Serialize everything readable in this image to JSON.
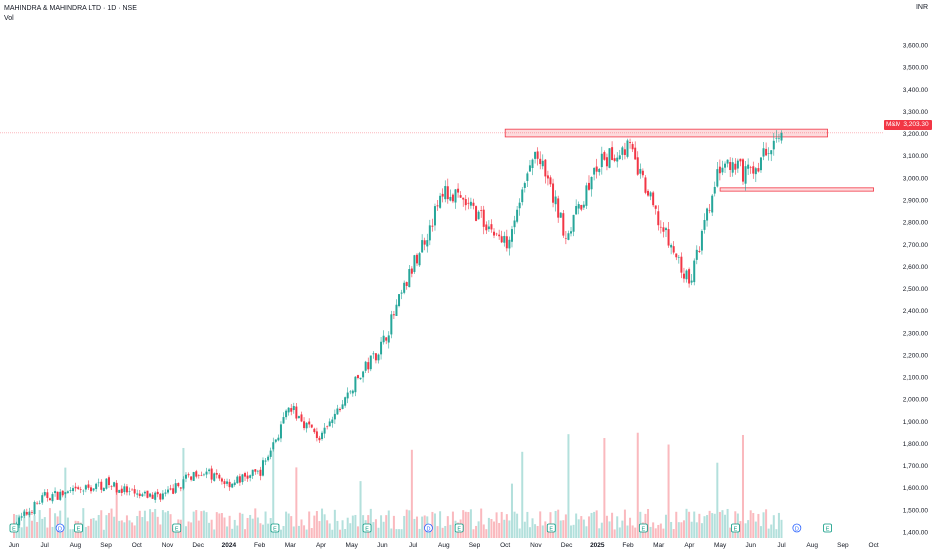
{
  "header": {
    "title": "MAHINDRA & MAHINDRA LTD · 1D · NSE",
    "volume_label": "Vol",
    "currency": "INR"
  },
  "last_price": {
    "symbol": "M&M",
    "value": "3,203.30"
  },
  "colors": {
    "up": "#26a69a",
    "down": "#f23645",
    "zone": "#f23645"
  },
  "chart_data": {
    "type": "candlestick",
    "ylim": [
      1400,
      3650
    ],
    "yticks": [
      1400,
      1500,
      1600,
      1700,
      1800,
      1900,
      2000,
      2100,
      2200,
      2300,
      2400,
      2500,
      2600,
      2700,
      2800,
      2900,
      3000,
      3100,
      3200,
      3300,
      3400,
      3500,
      3600
    ],
    "ytick_labels": [
      "1,400.00",
      "1,500.00",
      "1,600.00",
      "1,700.00",
      "1,800.00",
      "1,900.00",
      "2,000.00",
      "2,100.00",
      "2,200.00",
      "2,300.00",
      "2,400.00",
      "2,500.00",
      "2,600.00",
      "2,700.00",
      "2,800.00",
      "2,900.00",
      "3,000.00",
      "3,100.00",
      "3,200.00",
      "3,300.00",
      "3,400.00",
      "3,500.00",
      "3,600.00"
    ],
    "months": [
      "Jun",
      "Jul",
      "Aug",
      "Sep",
      "Oct",
      "Nov",
      "Dec",
      "2024",
      "Feb",
      "Mar",
      "Apr",
      "May",
      "Jun",
      "Jul",
      "Aug",
      "Sep",
      "Oct",
      "Nov",
      "Dec",
      "2025",
      "Feb",
      "Mar",
      "Apr",
      "May",
      "Jun",
      "Jul",
      "Aug",
      "Sep",
      "Oct"
    ],
    "price_path": [
      [
        0,
        1430
      ],
      [
        1,
        1560
      ],
      [
        2,
        1580
      ],
      [
        3,
        1620
      ],
      [
        4,
        1560
      ],
      [
        5,
        1570
      ],
      [
        6,
        1680
      ],
      [
        7,
        1620
      ],
      [
        8,
        1670
      ],
      [
        9,
        1960
      ],
      [
        10,
        1820
      ],
      [
        11,
        2050
      ],
      [
        12,
        2250
      ],
      [
        13,
        2600
      ],
      [
        14,
        2940
      ],
      [
        15,
        2850
      ],
      [
        16,
        2700
      ],
      [
        17,
        3120
      ],
      [
        18,
        2740
      ],
      [
        19,
        3050
      ],
      [
        20,
        3150
      ],
      [
        21,
        2800
      ],
      [
        22,
        2520
      ],
      [
        23,
        3050
      ],
      [
        24,
        3020
      ],
      [
        25,
        3203.3
      ]
    ],
    "zones": [
      {
        "label": "resistance",
        "start": 16.0,
        "end": 26.5,
        "low": 3185,
        "high": 3220
      },
      {
        "label": "support",
        "start": 23.0,
        "end": 28.0,
        "low": 2940,
        "high": 2955
      }
    ],
    "event_markers": [
      {
        "letter": "E",
        "month": 0.0
      },
      {
        "letter": "D",
        "month": 1.5
      },
      {
        "letter": "E",
        "month": 2.1
      },
      {
        "letter": "E",
        "month": 5.3
      },
      {
        "letter": "E",
        "month": 8.5
      },
      {
        "letter": "E",
        "month": 11.5
      },
      {
        "letter": "D",
        "month": 13.5
      },
      {
        "letter": "E",
        "month": 14.5
      },
      {
        "letter": "E",
        "month": 17.5
      },
      {
        "letter": "E",
        "month": 20.5
      },
      {
        "letter": "E",
        "month": 23.5
      },
      {
        "letter": "D",
        "month": 25.5
      },
      {
        "letter": "E",
        "month": 26.5
      }
    ]
  }
}
